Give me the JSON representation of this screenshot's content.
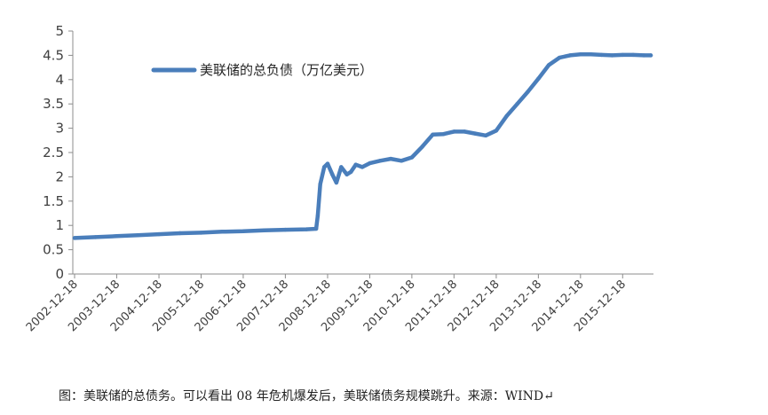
{
  "chart_data": {
    "type": "line",
    "title": "",
    "xlabel": "",
    "ylabel": "",
    "ylim": [
      0,
      5
    ],
    "yticks": [
      "0",
      "0.5",
      "1",
      "1.5",
      "2",
      "2.5",
      "3",
      "3.5",
      "4",
      "4.5",
      "5"
    ],
    "xticks": [
      "2002-12-18",
      "2003-12-18",
      "2004-12-18",
      "2005-12-18",
      "2006-12-18",
      "2007-12-18",
      "2008-12-18",
      "2009-12-18",
      "2010-12-18",
      "2011-12-18",
      "2012-12-18",
      "2013-12-18",
      "2014-12-18",
      "2015-12-18"
    ],
    "grid": false,
    "legend_position": "top-left",
    "series": [
      {
        "name": "美联储的总负债（万亿美元）",
        "color": "#4a7ebb",
        "x": [
          "2002-12-18",
          "2003-06-18",
          "2003-12-18",
          "2004-06-18",
          "2004-12-18",
          "2005-06-18",
          "2005-12-18",
          "2006-06-18",
          "2006-12-18",
          "2007-06-18",
          "2007-12-18",
          "2008-06-18",
          "2008-09-10",
          "2008-09-24",
          "2008-10-15",
          "2008-11-19",
          "2008-12-18",
          "2009-01-28",
          "2009-03-04",
          "2009-04-15",
          "2009-06-03",
          "2009-07-08",
          "2009-08-19",
          "2009-10-14",
          "2009-12-18",
          "2010-03-18",
          "2010-06-18",
          "2010-09-18",
          "2010-12-18",
          "2011-03-18",
          "2011-06-18",
          "2011-09-18",
          "2011-12-18",
          "2012-03-18",
          "2012-06-18",
          "2012-09-18",
          "2012-12-18",
          "2013-03-18",
          "2013-06-18",
          "2013-09-18",
          "2013-12-18",
          "2014-03-18",
          "2014-06-18",
          "2014-09-18",
          "2014-12-18",
          "2015-03-18",
          "2015-06-18",
          "2015-09-18",
          "2015-12-18",
          "2016-03-18",
          "2016-06-18",
          "2016-08-18"
        ],
        "values": [
          0.74,
          0.76,
          0.78,
          0.8,
          0.82,
          0.84,
          0.85,
          0.87,
          0.88,
          0.9,
          0.91,
          0.92,
          0.93,
          1.2,
          1.85,
          2.2,
          2.27,
          2.05,
          1.88,
          2.2,
          2.05,
          2.1,
          2.25,
          2.2,
          2.28,
          2.33,
          2.37,
          2.33,
          2.4,
          2.62,
          2.87,
          2.88,
          2.93,
          2.93,
          2.89,
          2.85,
          2.95,
          3.25,
          3.5,
          3.75,
          4.02,
          4.3,
          4.45,
          4.5,
          4.52,
          4.52,
          4.51,
          4.5,
          4.51,
          4.51,
          4.5,
          4.5
        ]
      }
    ]
  },
  "caption": "图：美联储的总债务。可以看出 08 年危机爆发后，美联储债务规模跳升。来源：WIND↵"
}
